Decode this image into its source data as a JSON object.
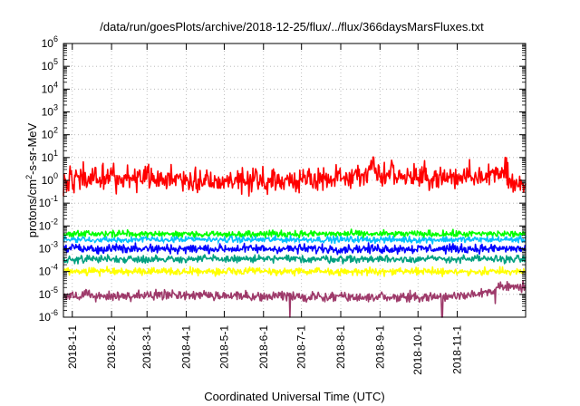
{
  "chart_data": {
    "type": "line",
    "title": "/data/run/goesPlots/archive/2018-12-25/flux/../flux/366daysMarsFluxes.txt",
    "xlabel": "Coordinated Universal Time (UTC)",
    "ylabel": {
      "pre": "protons/cm",
      "sup": "2",
      "post": "-s-sr-MeV"
    },
    "x_range": [
      "2017-12-25",
      "2018-12-25"
    ],
    "y_scale": "log",
    "ylim": [
      1e-06,
      1000000.0
    ],
    "grid": true,
    "x_ticks": [
      {
        "date": "2018-01-01",
        "label": "2018-1-1"
      },
      {
        "date": "2018-02-01",
        "label": "2018-2-1"
      },
      {
        "date": "2018-03-01",
        "label": "2018-3-1"
      },
      {
        "date": "2018-04-01",
        "label": "2018-4-1"
      },
      {
        "date": "2018-05-01",
        "label": "2018-5-1"
      },
      {
        "date": "2018-06-01",
        "label": "2018-6-1"
      },
      {
        "date": "2018-07-01",
        "label": "2018-7-1"
      },
      {
        "date": "2018-08-01",
        "label": "2018-8-1"
      },
      {
        "date": "2018-09-01",
        "label": "2018-9-1"
      },
      {
        "date": "2018-10-01",
        "label": "2018-10-1"
      },
      {
        "date": "2018-11-01",
        "label": "2018-11-1"
      }
    ],
    "y_ticks": [
      {
        "exp": -6
      },
      {
        "exp": -5
      },
      {
        "exp": -4
      },
      {
        "exp": -3
      },
      {
        "exp": -2
      },
      {
        "exp": -1
      },
      {
        "exp": 0
      },
      {
        "exp": 1
      },
      {
        "exp": 2
      },
      {
        "exp": 3
      },
      {
        "exp": 4
      },
      {
        "exp": 5
      },
      {
        "exp": 6
      }
    ],
    "series": [
      {
        "color": "#ff0000",
        "typical_log10": -0.15,
        "noise_log10": 0.32,
        "points": [
          [
            "2018-01-08",
            0.25
          ],
          [
            "2018-03-02",
            0.7
          ],
          [
            "2018-03-20",
            0.3
          ],
          [
            "2018-05-10",
            0.2
          ],
          [
            "2018-07-05",
            0.3
          ],
          [
            "2018-08-25",
            1.1
          ],
          [
            "2018-09-12",
            0.7
          ],
          [
            "2018-10-05",
            0.5
          ],
          [
            "2018-11-10",
            0.55
          ],
          [
            "2018-12-10",
            1.0
          ]
        ]
      },
      {
        "color": "#00ff00",
        "typical_log10": -2.35,
        "noise_log10": 0.09,
        "points": []
      },
      {
        "color": "#00bfff",
        "typical_log10": -2.6,
        "noise_log10": 0.09,
        "points": []
      },
      {
        "color": "#ffffff",
        "typical_log10": -2.85,
        "noise_log10": 0.1,
        "points": []
      },
      {
        "color": "#0000ff",
        "typical_log10": -3.0,
        "noise_log10": 0.12,
        "points": []
      },
      {
        "color": "#00a080",
        "typical_log10": -3.45,
        "noise_log10": 0.1,
        "points": []
      },
      {
        "color": "#ffff00",
        "typical_log10": -4.0,
        "noise_log10": 0.1,
        "points": []
      },
      {
        "color": "#9e3a6a",
        "typical_log10": -4.65,
        "noise_log10": 0.13,
        "points": [
          [
            "2018-06-22",
            -6.0
          ],
          [
            "2018-10-20",
            -6.0
          ],
          [
            "2018-12-01",
            -5.4
          ]
        ]
      }
    ]
  }
}
